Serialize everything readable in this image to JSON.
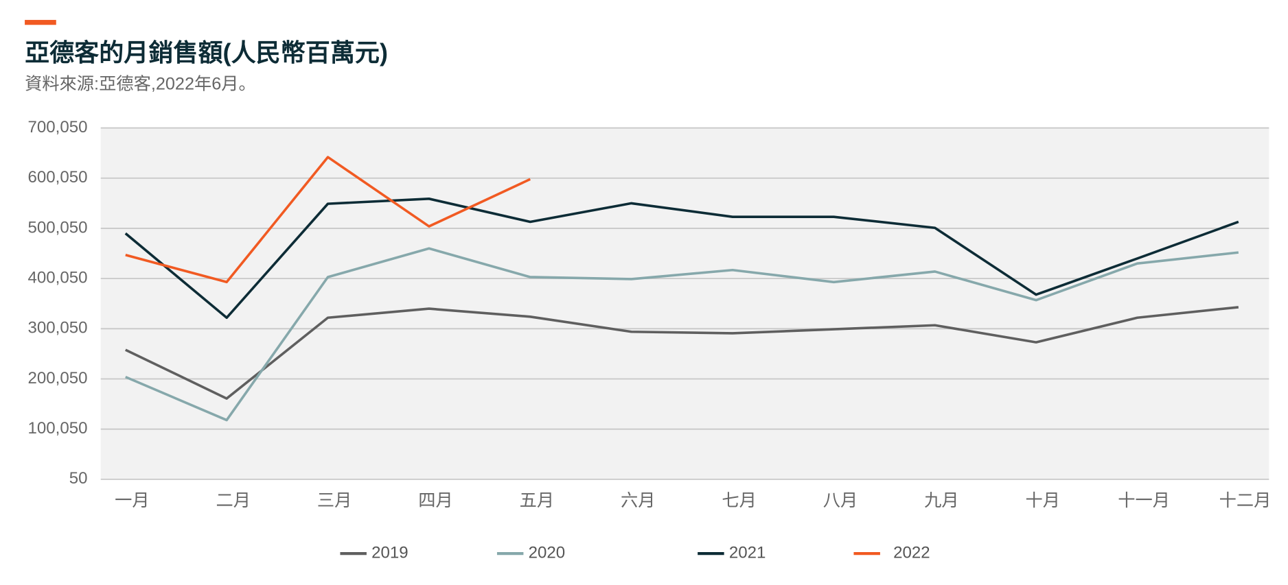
{
  "chart_data": {
    "type": "line",
    "title": "亞德客的月銷售額(人民幣百萬元)",
    "subtitle": "資料來源:亞德客,2022年6月。",
    "categories": [
      "一月",
      "二月",
      "三月",
      "四月",
      "五月",
      "六月",
      "七月",
      "八月",
      "九月",
      "十月",
      "十一月",
      "十二月"
    ],
    "series": [
      {
        "name": "2019",
        "color": "#5f5f5f",
        "values": [
          258000,
          161000,
          322000,
          340000,
          324000,
          294000,
          291000,
          299000,
          307000,
          273000,
          322000,
          343000
        ]
      },
      {
        "name": "2020",
        "color": "#86a8ab",
        "values": [
          204000,
          118000,
          403000,
          460000,
          403000,
          399000,
          417000,
          393000,
          414000,
          357000,
          430000,
          452000
        ]
      },
      {
        "name": "2021",
        "color": "#0d2c36",
        "values": [
          490000,
          322000,
          549000,
          559000,
          513000,
          550000,
          523000,
          523000,
          501000,
          368000,
          440000,
          513000
        ]
      },
      {
        "name": "2022",
        "color": "#f15a22",
        "values": [
          447000,
          393000,
          642000,
          504000,
          598000,
          null,
          null,
          null,
          null,
          null,
          null,
          null
        ]
      }
    ],
    "ylim": [
      50,
      700050
    ],
    "yticks": [
      50,
      {
        "value": 100050,
        "label": "100,050"
      },
      {
        "value": 200050,
        "label": "200,050"
      },
      {
        "value": 300050,
        "label": "300,050"
      },
      {
        "value": 400050,
        "label": "400,050"
      },
      {
        "value": 500050,
        "label": "500,050"
      },
      {
        "value": 600050,
        "label": "600,050"
      },
      {
        "value": 700050,
        "label": "700,050"
      }
    ],
    "grid": true,
    "legend": "bottom"
  }
}
